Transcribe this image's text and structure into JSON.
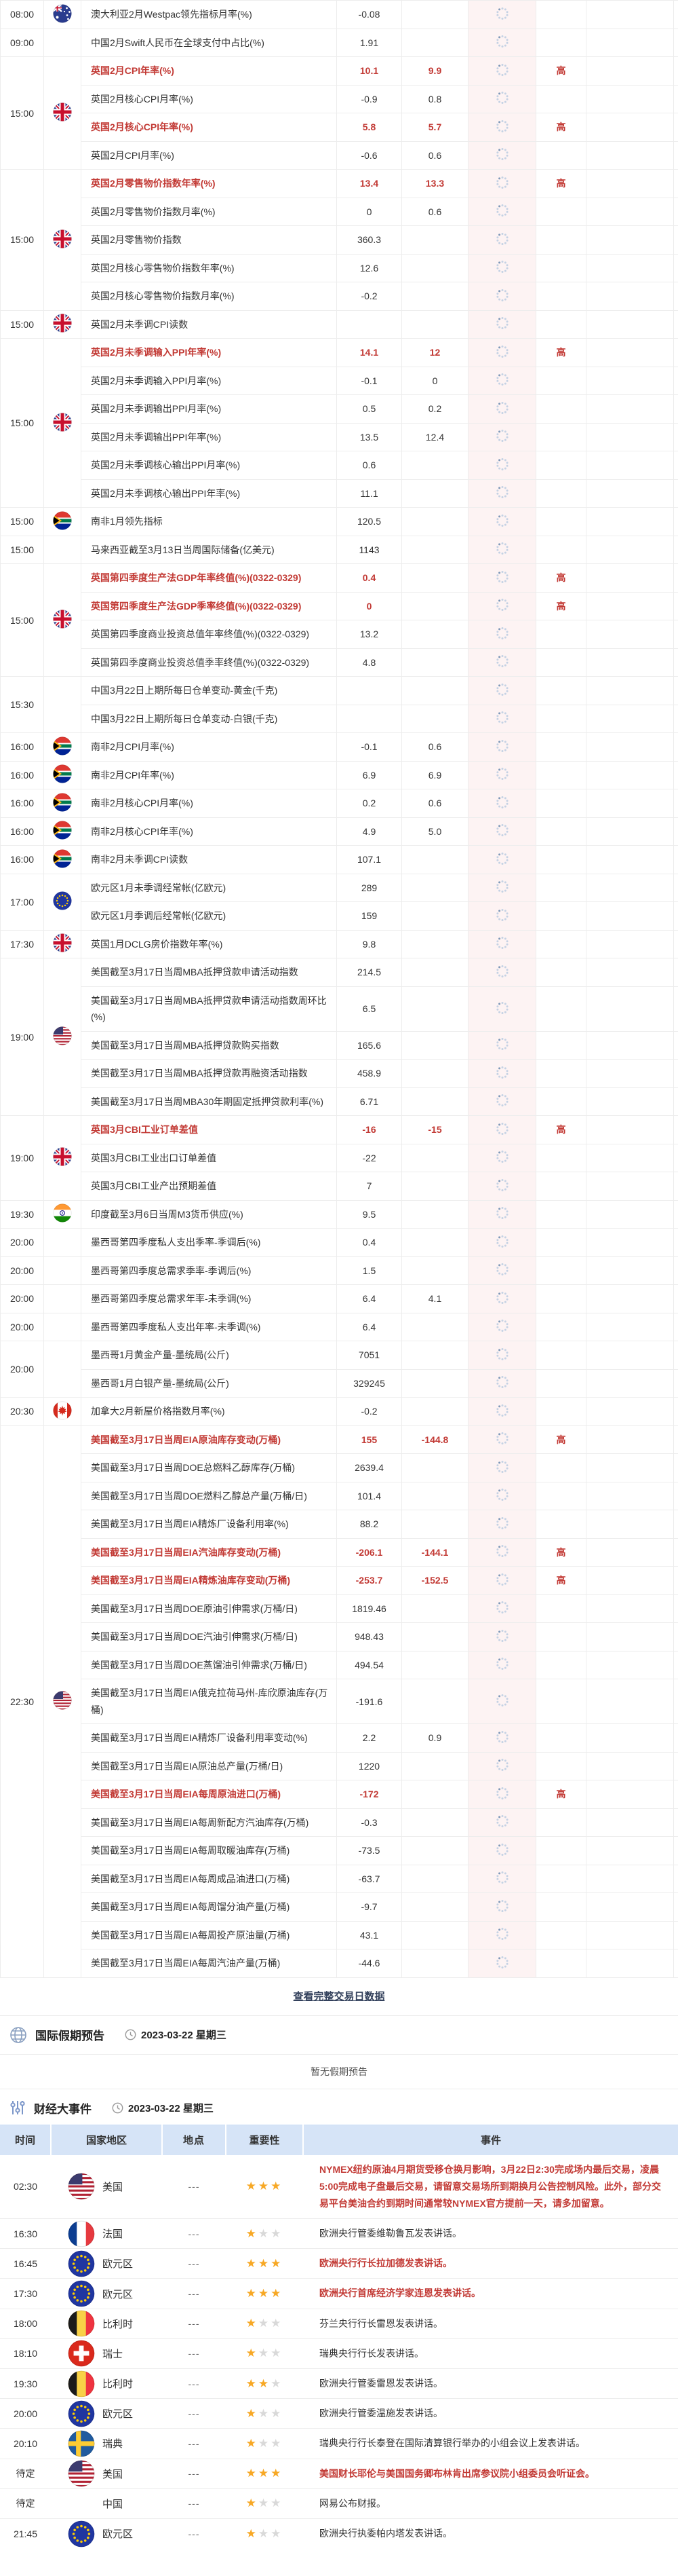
{
  "colors": {
    "accent_red": "#c23934",
    "star_gold": "#f7a825",
    "published_bg": "#fdf3f3",
    "header_blue": "#d6e4f7",
    "icon_blue": "#b5cbe3"
  },
  "calendar": {
    "importance_high_label": "高",
    "view_full_link": "查看完整交易日数据",
    "groups": [
      {
        "time": "08:00",
        "flag": "au",
        "rows": [
          {
            "n": "澳大利亚2月Westpac领先指标月率(%)",
            "p": "-0.08",
            "f": "",
            "h": false
          }
        ]
      },
      {
        "time": "09:00",
        "flag": "none",
        "rows": [
          {
            "n": "中国2月Swift人民币在全球支付中占比(%)",
            "p": "1.91",
            "f": "",
            "h": false
          }
        ]
      },
      {
        "time": "15:00",
        "flag": "gb",
        "rows": [
          {
            "n": "英国2月CPI年率(%)",
            "p": "10.1",
            "f": "9.9",
            "h": true
          },
          {
            "n": "英国2月核心CPI月率(%)",
            "p": "-0.9",
            "f": "0.8",
            "h": false
          },
          {
            "n": "英国2月核心CPI年率(%)",
            "p": "5.8",
            "f": "5.7",
            "h": true
          },
          {
            "n": "英国2月CPI月率(%)",
            "p": "-0.6",
            "f": "0.6",
            "h": false
          }
        ]
      },
      {
        "time": "15:00",
        "flag": "gb",
        "rows": [
          {
            "n": "英国2月零售物价指数年率(%)",
            "p": "13.4",
            "f": "13.3",
            "h": true
          },
          {
            "n": "英国2月零售物价指数月率(%)",
            "p": "0",
            "f": "0.6",
            "h": false
          },
          {
            "n": "英国2月零售物价指数",
            "p": "360.3",
            "f": "",
            "h": false
          },
          {
            "n": "英国2月核心零售物价指数年率(%)",
            "p": "12.6",
            "f": "",
            "h": false
          },
          {
            "n": "英国2月核心零售物价指数月率(%)",
            "p": "-0.2",
            "f": "",
            "h": false
          }
        ]
      },
      {
        "time": "15:00",
        "flag": "gb",
        "rows": [
          {
            "n": "英国2月未季调CPI读数",
            "p": "",
            "f": "",
            "h": false
          }
        ]
      },
      {
        "time": "15:00",
        "flag": "gb",
        "rows": [
          {
            "n": "英国2月未季调输入PPI年率(%)",
            "p": "14.1",
            "f": "12",
            "h": true
          },
          {
            "n": "英国2月未季调输入PPI月率(%)",
            "p": "-0.1",
            "f": "0",
            "h": false
          },
          {
            "n": "英国2月未季调输出PPI月率(%)",
            "p": "0.5",
            "f": "0.2",
            "h": false
          },
          {
            "n": "英国2月未季调输出PPI年率(%)",
            "p": "13.5",
            "f": "12.4",
            "h": false
          },
          {
            "n": "英国2月未季调核心输出PPI月率(%)",
            "p": "0.6",
            "f": "",
            "h": false
          },
          {
            "n": "英国2月未季调核心输出PPI年率(%)",
            "p": "11.1",
            "f": "",
            "h": false
          }
        ]
      },
      {
        "time": "15:00",
        "flag": "za",
        "rows": [
          {
            "n": "南非1月领先指标",
            "p": "120.5",
            "f": "",
            "h": false
          }
        ]
      },
      {
        "time": "15:00",
        "flag": "none",
        "rows": [
          {
            "n": "马来西亚截至3月13日当周国际储备(亿美元)",
            "p": "1143",
            "f": "",
            "h": false
          }
        ]
      },
      {
        "time": "15:00",
        "flag": "gb",
        "rows": [
          {
            "n": "英国第四季度生产法GDP年率终值(%)(0322-0329)",
            "p": "0.4",
            "f": "",
            "h": true
          },
          {
            "n": "英国第四季度生产法GDP季率终值(%)(0322-0329)",
            "p": "0",
            "f": "",
            "h": true
          },
          {
            "n": "英国第四季度商业投资总值年率终值(%)(0322-0329)",
            "p": "13.2",
            "f": "",
            "h": false
          },
          {
            "n": "英国第四季度商业投资总值季率终值(%)(0322-0329)",
            "p": "4.8",
            "f": "",
            "h": false
          }
        ]
      },
      {
        "time": "15:30",
        "flag": "none",
        "rows": [
          {
            "n": "中国3月22日上期所每日仓单变动-黄金(千克)",
            "p": "",
            "f": "",
            "h": false
          },
          {
            "n": "中国3月22日上期所每日仓单变动-白银(千克)",
            "p": "",
            "f": "",
            "h": false
          }
        ]
      },
      {
        "time": "16:00",
        "flag": "za",
        "rows": [
          {
            "n": "南非2月CPI月率(%)",
            "p": "-0.1",
            "f": "0.6",
            "h": false
          }
        ]
      },
      {
        "time": "16:00",
        "flag": "za",
        "rows": [
          {
            "n": "南非2月CPI年率(%)",
            "p": "6.9",
            "f": "6.9",
            "h": false
          }
        ]
      },
      {
        "time": "16:00",
        "flag": "za",
        "rows": [
          {
            "n": "南非2月核心CPI月率(%)",
            "p": "0.2",
            "f": "0.6",
            "h": false
          }
        ]
      },
      {
        "time": "16:00",
        "flag": "za",
        "rows": [
          {
            "n": "南非2月核心CPI年率(%)",
            "p": "4.9",
            "f": "5.0",
            "h": false
          }
        ]
      },
      {
        "time": "16:00",
        "flag": "za",
        "rows": [
          {
            "n": "南非2月未季调CPI读数",
            "p": "107.1",
            "f": "",
            "h": false
          }
        ]
      },
      {
        "time": "17:00",
        "flag": "eu",
        "rows": [
          {
            "n": "欧元区1月未季调经常帐(亿欧元)",
            "p": "289",
            "f": "",
            "h": false
          },
          {
            "n": "欧元区1月季调后经常帐(亿欧元)",
            "p": "159",
            "f": "",
            "h": false
          }
        ]
      },
      {
        "time": "17:30",
        "flag": "gb",
        "rows": [
          {
            "n": "英国1月DCLG房价指数年率(%)",
            "p": "9.8",
            "f": "",
            "h": false
          }
        ]
      },
      {
        "time": "19:00",
        "flag": "us",
        "rows": [
          {
            "n": "美国截至3月17日当周MBA抵押贷款申请活动指数",
            "p": "214.5",
            "f": "",
            "h": false
          },
          {
            "n": "美国截至3月17日当周MBA抵押贷款申请活动指数周环比(%)",
            "p": "6.5",
            "f": "",
            "h": false
          },
          {
            "n": "美国截至3月17日当周MBA抵押贷款购买指数",
            "p": "165.6",
            "f": "",
            "h": false
          },
          {
            "n": "美国截至3月17日当周MBA抵押贷款再融资活动指数",
            "p": "458.9",
            "f": "",
            "h": false
          },
          {
            "n": "美国截至3月17日当周MBA30年期固定抵押贷款利率(%)",
            "p": "6.71",
            "f": "",
            "h": false
          }
        ]
      },
      {
        "time": "19:00",
        "flag": "gb",
        "rows": [
          {
            "n": "英国3月CBI工业订单差值",
            "p": "-16",
            "f": "-15",
            "h": true
          },
          {
            "n": "英国3月CBI工业出口订单差值",
            "p": "-22",
            "f": "",
            "h": false
          },
          {
            "n": "英国3月CBI工业产出预期差值",
            "p": "7",
            "f": "",
            "h": false
          }
        ]
      },
      {
        "time": "19:30",
        "flag": "in",
        "rows": [
          {
            "n": "印度截至3月6日当周M3货币供应(%)",
            "p": "9.5",
            "f": "",
            "h": false
          }
        ]
      },
      {
        "time": "20:00",
        "flag": "none",
        "rows": [
          {
            "n": "墨西哥第四季度私人支出季率-季调后(%)",
            "p": "0.4",
            "f": "",
            "h": false
          }
        ]
      },
      {
        "time": "20:00",
        "flag": "none",
        "rows": [
          {
            "n": "墨西哥第四季度总需求季率-季调后(%)",
            "p": "1.5",
            "f": "",
            "h": false
          }
        ]
      },
      {
        "time": "20:00",
        "flag": "none",
        "rows": [
          {
            "n": "墨西哥第四季度总需求年率-未季调(%)",
            "p": "6.4",
            "f": "4.1",
            "h": false
          }
        ]
      },
      {
        "time": "20:00",
        "flag": "none",
        "rows": [
          {
            "n": "墨西哥第四季度私人支出年率-未季调(%)",
            "p": "6.4",
            "f": "",
            "h": false
          }
        ]
      },
      {
        "time": "20:00",
        "flag": "none",
        "rows": [
          {
            "n": "墨西哥1月黄金产量-墨统局(公斤)",
            "p": "7051",
            "f": "",
            "h": false
          },
          {
            "n": "墨西哥1月白银产量-墨统局(公斤)",
            "p": "329245",
            "f": "",
            "h": false
          }
        ]
      },
      {
        "time": "20:30",
        "flag": "ca",
        "rows": [
          {
            "n": "加拿大2月新屋价格指数月率(%)",
            "p": "-0.2",
            "f": "",
            "h": false
          }
        ]
      },
      {
        "time": "22:30",
        "flag": "us",
        "rows": [
          {
            "n": "美国截至3月17日当周EIA原油库存变动(万桶)",
            "p": "155",
            "f": "-144.8",
            "h": true
          },
          {
            "n": "美国截至3月17日当周DOE总燃料乙醇库存(万桶)",
            "p": "2639.4",
            "f": "",
            "h": false
          },
          {
            "n": "美国截至3月17日当周DOE燃料乙醇总产量(万桶/日)",
            "p": "101.4",
            "f": "",
            "h": false
          },
          {
            "n": "美国截至3月17日当周EIA精炼厂设备利用率(%)",
            "p": "88.2",
            "f": "",
            "h": false
          },
          {
            "n": "美国截至3月17日当周EIA汽油库存变动(万桶)",
            "p": "-206.1",
            "f": "-144.1",
            "h": true
          },
          {
            "n": "美国截至3月17日当周EIA精炼油库存变动(万桶)",
            "p": "-253.7",
            "f": "-152.5",
            "h": true
          },
          {
            "n": "美国截至3月17日当周DOE原油引伸需求(万桶/日)",
            "p": "1819.46",
            "f": "",
            "h": false
          },
          {
            "n": "美国截至3月17日当周DOE汽油引伸需求(万桶/日)",
            "p": "948.43",
            "f": "",
            "h": false
          },
          {
            "n": "美国截至3月17日当周DOE蒸馏油引伸需求(万桶/日)",
            "p": "494.54",
            "f": "",
            "h": false
          },
          {
            "n": "美国截至3月17日当周EIA俄克拉荷马州-库欣原油库存(万桶)",
            "p": "-191.6",
            "f": "",
            "h": false
          },
          {
            "n": "美国截至3月17日当周EIA精炼厂设备利用率变动(%)",
            "p": "2.2",
            "f": "0.9",
            "h": false
          },
          {
            "n": "美国截至3月17日当周EIA原油总产量(万桶/日)",
            "p": "1220",
            "f": "",
            "h": false
          },
          {
            "n": "美国截至3月17日当周EIA每周原油进口(万桶)",
            "p": "-172",
            "f": "",
            "h": true
          },
          {
            "n": "美国截至3月17日当周EIA每周新配方汽油库存(万桶)",
            "p": "-0.3",
            "f": "",
            "h": false
          },
          {
            "n": "美国截至3月17日当周EIA每周取暖油库存(万桶)",
            "p": "-73.5",
            "f": "",
            "h": false
          },
          {
            "n": "美国截至3月17日当周EIA每周成品油进口(万桶)",
            "p": "-63.7",
            "f": "",
            "h": false
          },
          {
            "n": "美国截至3月17日当周EIA每周馏分油产量(万桶)",
            "p": "-9.7",
            "f": "",
            "h": false
          },
          {
            "n": "美国截至3月17日当周EIA每周投产原油量(万桶)",
            "p": "43.1",
            "f": "",
            "h": false
          },
          {
            "n": "美国截至3月17日当周EIA每周汽油产量(万桶)",
            "p": "-44.6",
            "f": "",
            "h": false
          }
        ]
      }
    ]
  },
  "holiday": {
    "title": "国际假期预告",
    "date": "2023-03-22 星期三",
    "empty_text": "暂无假期预告"
  },
  "events": {
    "title": "财经大事件",
    "date": "2023-03-22 星期三",
    "headers": [
      "时间",
      "国家地区",
      "地点",
      "重要性",
      "事件"
    ],
    "location_placeholder": "---",
    "rows": [
      {
        "time": "02:30",
        "country": "美国",
        "flag": "us",
        "loc": "---",
        "stars": 3,
        "red": true,
        "text": "NYMEX纽约原油4月期货受移仓换月影响，3月22日2:30完成场内最后交易，凌晨5:00完成电子盘最后交易，请留意交易场所到期换月公告控制风险。此外，部分交易平台美油合约到期时间通常较NYMEX官方提前一天，请多加留意。"
      },
      {
        "time": "16:30",
        "country": "法国",
        "flag": "fr",
        "loc": "---",
        "stars": 1,
        "red": false,
        "text": "欧洲央行管委维勒鲁瓦发表讲话。"
      },
      {
        "time": "16:45",
        "country": "欧元区",
        "flag": "eu",
        "loc": "---",
        "stars": 3,
        "red": true,
        "text": "欧洲央行行长拉加德发表讲话。"
      },
      {
        "time": "17:30",
        "country": "欧元区",
        "flag": "eu",
        "loc": "---",
        "stars": 3,
        "red": true,
        "text": "欧洲央行首席经济学家连恩发表讲话。"
      },
      {
        "time": "18:00",
        "country": "比利时",
        "flag": "be",
        "loc": "---",
        "stars": 1,
        "red": false,
        "text": "芬兰央行行长雷恩发表讲话。"
      },
      {
        "time": "18:10",
        "country": "瑞士",
        "flag": "ch",
        "loc": "---",
        "stars": 1,
        "red": false,
        "text": "瑞典央行行长发表讲话。"
      },
      {
        "time": "19:30",
        "country": "比利时",
        "flag": "be",
        "loc": "---",
        "stars": 2,
        "red": false,
        "text": "欧洲央行管委雷恩发表讲话。"
      },
      {
        "time": "20:00",
        "country": "欧元区",
        "flag": "eu",
        "loc": "---",
        "stars": 1,
        "red": false,
        "text": "欧洲央行管委温施发表讲话。"
      },
      {
        "time": "20:10",
        "country": "瑞典",
        "flag": "se",
        "loc": "---",
        "stars": 1,
        "red": false,
        "text": "瑞典央行行长泰登在国际清算银行举办的小组会议上发表讲话。"
      },
      {
        "time": "待定",
        "country": "美国",
        "flag": "us",
        "loc": "---",
        "stars": 3,
        "red": true,
        "text": "美国财长耶伦与美国国务卿布林肯出席参议院小组委员会听证会。"
      },
      {
        "time": "待定",
        "country": "中国",
        "flag": "none",
        "loc": "---",
        "stars": 1,
        "red": false,
        "text": "网易公布财报。"
      },
      {
        "time": "21:45",
        "country": "欧元区",
        "flag": "eu",
        "loc": "---",
        "stars": 1,
        "red": false,
        "text": "欧洲央行执委帕内塔发表讲话。"
      }
    ]
  }
}
